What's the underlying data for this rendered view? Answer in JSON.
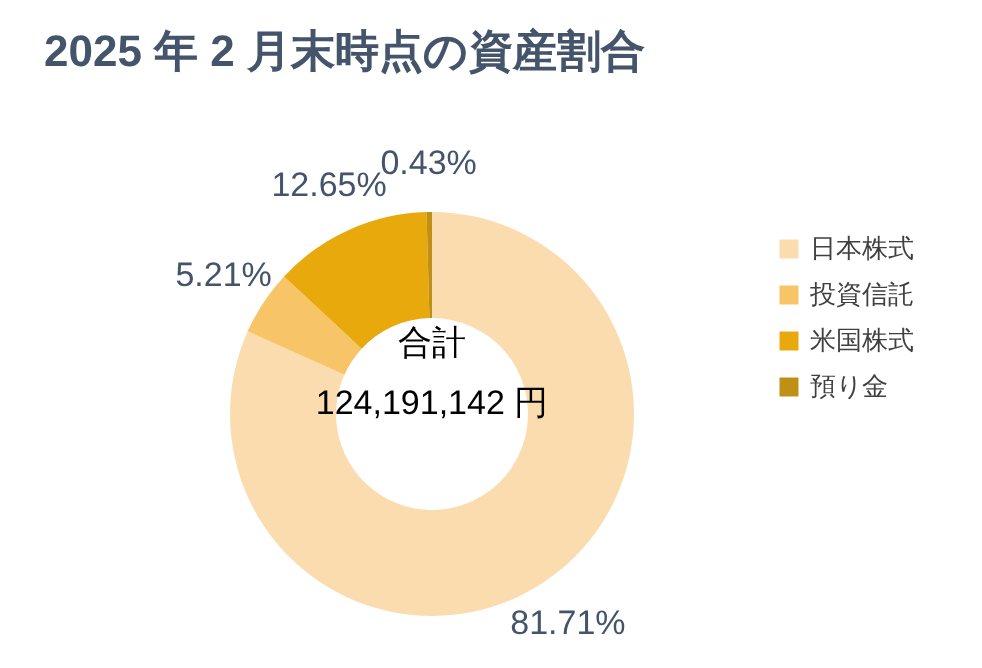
{
  "chart_data": {
    "type": "donut",
    "title": "2025 年 2 月末時点の資産割合",
    "categories": [
      "日本株式",
      "投資信託",
      "米国株式",
      "預り金"
    ],
    "values": [
      81.71,
      5.21,
      12.65,
      0.43
    ],
    "colors": [
      "#fbdcae",
      "#f8c468",
      "#e8a90c",
      "#c09016"
    ],
    "value_labels": [
      "81.71%",
      "5.21%",
      "12.65%",
      "0.43%"
    ],
    "annotations": [
      "合計",
      "124,191,142 円"
    ],
    "legend": "right"
  }
}
